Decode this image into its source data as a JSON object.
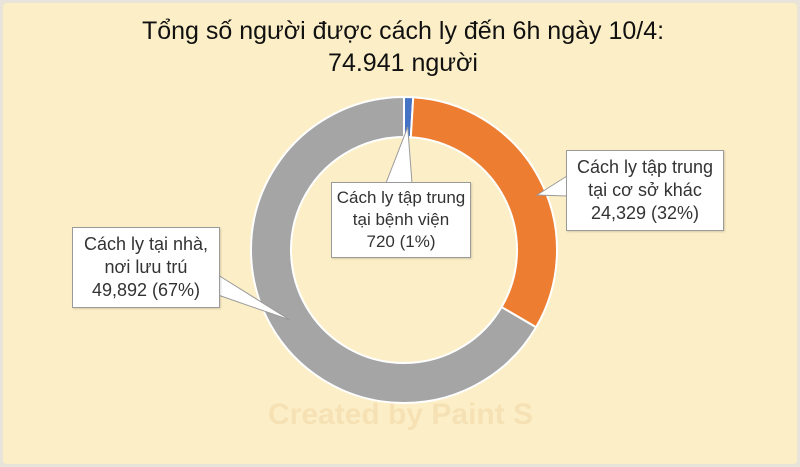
{
  "chart_data": {
    "type": "pie",
    "donut": true,
    "title": [
      "Tổng số người được cách ly đến 6h ngày 10/4:",
      "74.941 người"
    ],
    "slices": [
      {
        "label": [
          "Cách ly tập trung",
          "tại bệnh viện",
          "720  (1%)"
        ],
        "value": 720,
        "percent": 1,
        "color": "#4472c4"
      },
      {
        "label": [
          "Cách ly tập trung",
          "tại cơ sở khác",
          "24,329 (32%)"
        ],
        "value": 24329,
        "percent": 32,
        "color": "#ed7d31"
      },
      {
        "label": [
          "Cách ly tại nhà,",
          "nơi lưu trú",
          "49,892 (67%)"
        ],
        "value": 49892,
        "percent": 67,
        "color": "#a5a5a5"
      }
    ],
    "start": "top",
    "direction": "clockwise",
    "legend": "none",
    "background": "#fcefc7"
  },
  "watermark": "Created by Paint S"
}
